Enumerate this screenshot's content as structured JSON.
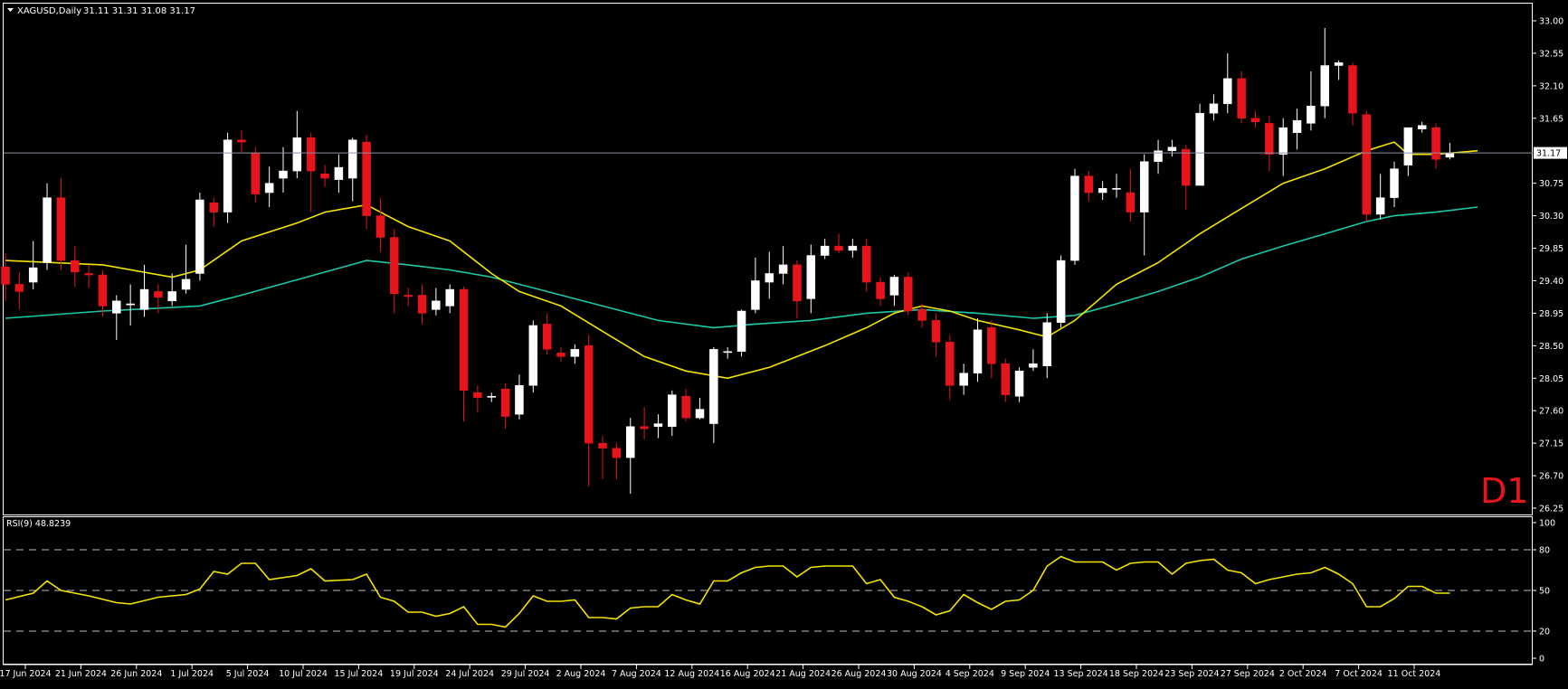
{
  "header": {
    "symbol_label": "XAGUSD,Daily",
    "ohlc": "31.11 31.31 31.08 31.17",
    "timeframe_badge": "D1"
  },
  "price_panel": {
    "current_price_label": "31.17",
    "y_ticks": [
      "33.00",
      "32.55",
      "32.10",
      "31.65",
      "30.75",
      "30.30",
      "29.85",
      "29.40",
      "28.95",
      "28.50",
      "28.05",
      "27.60",
      "27.15",
      "26.70",
      "26.25"
    ]
  },
  "rsi_panel": {
    "label": "RSI(9) 48.8239",
    "y_ticks": [
      "100",
      "80",
      "50",
      "20",
      "0"
    ]
  },
  "x_ticks": [
    "17 Jun 2024",
    "21 Jun 2024",
    "26 Jun 2024",
    "1 Jul 2024",
    "5 Jul 2024",
    "10 Jul 2024",
    "15 Jul 2024",
    "19 Jul 2024",
    "24 Jul 2024",
    "29 Jul 2024",
    "2 Aug 2024",
    "7 Aug 2024",
    "12 Aug 2024",
    "16 Aug 2024",
    "21 Aug 2024",
    "26 Aug 2024",
    "30 Aug 2024",
    "4 Sep 2024",
    "9 Sep 2024",
    "13 Sep 2024",
    "18 Sep 2024",
    "23 Sep 2024",
    "27 Sep 2024",
    "2 Oct 2024",
    "7 Oct 2024",
    "11 Oct 2024"
  ],
  "colors": {
    "bull": "#ffffff",
    "bear": "#e8141c",
    "ma_fast": "#f5e400",
    "ma_slow": "#19c8a8",
    "rsi": "#f5e400",
    "axis_text": "#ffffff",
    "grid_dash": "#bbbbbb",
    "badge": "#e8141c"
  },
  "chart_data": {
    "type": "candlestick",
    "symbol": "XAGUSD",
    "timeframe": "Daily",
    "ylim": [
      26.25,
      33.15
    ],
    "candles": [
      [
        29.59,
        29.35,
        29.78,
        29.12
      ],
      [
        29.35,
        29.25,
        29.52,
        29.0
      ],
      [
        29.38,
        29.58,
        29.95,
        29.28
      ],
      [
        29.65,
        30.55,
        30.75,
        29.55
      ],
      [
        30.55,
        29.68,
        30.82,
        29.55
      ],
      [
        29.68,
        29.52,
        29.88,
        29.32
      ],
      [
        29.5,
        29.48,
        29.62,
        29.3
      ],
      [
        29.48,
        29.05,
        29.55,
        28.9
      ],
      [
        28.95,
        29.12,
        29.2,
        28.58
      ],
      [
        29.08,
        29.08,
        29.35,
        28.78
      ],
      [
        29.0,
        29.28,
        29.62,
        28.9
      ],
      [
        29.25,
        29.17,
        29.35,
        28.95
      ],
      [
        29.12,
        29.25,
        29.5,
        29.05
      ],
      [
        29.28,
        29.42,
        29.9,
        29.22
      ],
      [
        29.5,
        30.52,
        30.62,
        29.4
      ],
      [
        30.48,
        30.35,
        30.55,
        30.15
      ],
      [
        30.35,
        31.35,
        31.45,
        30.2
      ],
      [
        31.35,
        31.32,
        31.48,
        31.18
      ],
      [
        31.17,
        30.6,
        31.25,
        30.48
      ],
      [
        30.62,
        30.75,
        30.98,
        30.42
      ],
      [
        30.82,
        30.92,
        31.25,
        30.62
      ],
      [
        30.92,
        31.38,
        31.75,
        30.82
      ],
      [
        31.38,
        30.92,
        31.45,
        30.35
      ],
      [
        30.88,
        30.82,
        31.0,
        30.7
      ],
      [
        30.8,
        30.97,
        31.15,
        30.62
      ],
      [
        30.82,
        31.35,
        31.38,
        30.5
      ],
      [
        31.32,
        30.3,
        31.42,
        30.12
      ],
      [
        30.3,
        30.0,
        30.55,
        29.8
      ],
      [
        30.0,
        29.22,
        30.12,
        28.95
      ],
      [
        29.2,
        29.18,
        29.3,
        29.05
      ],
      [
        29.2,
        28.95,
        29.35,
        28.8
      ],
      [
        29.0,
        29.12,
        29.3,
        28.92
      ],
      [
        29.05,
        29.28,
        29.35,
        28.95
      ],
      [
        29.28,
        27.88,
        29.32,
        27.45
      ],
      [
        27.85,
        27.78,
        27.95,
        27.58
      ],
      [
        27.8,
        27.8,
        27.85,
        27.72
      ],
      [
        27.9,
        27.52,
        27.98,
        27.35
      ],
      [
        27.55,
        27.95,
        28.1,
        27.48
      ],
      [
        27.95,
        28.78,
        28.85,
        27.85
      ],
      [
        28.8,
        28.45,
        28.95,
        28.38
      ],
      [
        28.4,
        28.35,
        28.48,
        28.28
      ],
      [
        28.35,
        28.45,
        28.52,
        28.25
      ],
      [
        28.5,
        27.15,
        28.65,
        26.55
      ],
      [
        27.15,
        27.08,
        27.25,
        26.65
      ],
      [
        27.08,
        26.95,
        27.15,
        26.65
      ],
      [
        26.95,
        27.38,
        27.5,
        26.45
      ],
      [
        27.38,
        27.35,
        27.65,
        27.2
      ],
      [
        27.38,
        27.42,
        27.55,
        27.22
      ],
      [
        27.38,
        27.82,
        27.88,
        27.25
      ],
      [
        27.8,
        27.5,
        27.9,
        27.45
      ],
      [
        27.5,
        27.62,
        27.78,
        27.48
      ],
      [
        27.42,
        28.45,
        28.48,
        27.15
      ],
      [
        28.42,
        28.42,
        28.48,
        28.32
      ],
      [
        28.42,
        28.98,
        29.0,
        28.35
      ],
      [
        29.0,
        29.4,
        29.72,
        28.95
      ],
      [
        29.38,
        29.5,
        29.8,
        29.15
      ],
      [
        29.5,
        29.62,
        29.88,
        29.35
      ],
      [
        29.62,
        29.12,
        29.68,
        28.88
      ],
      [
        29.15,
        29.75,
        29.9,
        28.95
      ],
      [
        29.75,
        29.88,
        29.98,
        29.7
      ],
      [
        29.88,
        29.82,
        30.05,
        29.78
      ],
      [
        29.82,
        29.88,
        29.98,
        29.72
      ],
      [
        29.88,
        29.38,
        29.98,
        29.25
      ],
      [
        29.38,
        29.15,
        29.45,
        29.05
      ],
      [
        29.2,
        29.45,
        29.48,
        29.05
      ],
      [
        29.45,
        28.98,
        29.52,
        28.92
      ],
      [
        29.0,
        28.85,
        29.08,
        28.75
      ],
      [
        28.85,
        28.55,
        28.95,
        28.35
      ],
      [
        28.55,
        27.95,
        28.65,
        27.75
      ],
      [
        27.95,
        28.12,
        28.25,
        27.82
      ],
      [
        28.12,
        28.72,
        28.88,
        28.0
      ],
      [
        28.75,
        28.25,
        28.85,
        28.05
      ],
      [
        28.25,
        27.82,
        28.32,
        27.72
      ],
      [
        27.8,
        28.15,
        28.2,
        27.72
      ],
      [
        28.2,
        28.25,
        28.45,
        28.15
      ],
      [
        28.22,
        28.82,
        28.95,
        28.05
      ],
      [
        28.82,
        29.68,
        29.75,
        28.75
      ],
      [
        29.68,
        30.85,
        30.95,
        29.62
      ],
      [
        30.85,
        30.62,
        30.92,
        30.5
      ],
      [
        30.62,
        30.68,
        30.78,
        30.52
      ],
      [
        30.68,
        30.68,
        30.88,
        30.55
      ],
      [
        30.62,
        30.35,
        30.95,
        30.22
      ],
      [
        30.35,
        31.05,
        31.15,
        29.75
      ],
      [
        31.05,
        31.2,
        31.35,
        30.88
      ],
      [
        31.2,
        31.25,
        31.35,
        31.12
      ],
      [
        31.22,
        30.72,
        31.28,
        30.38
      ],
      [
        30.72,
        31.72,
        31.85,
        30.72
      ],
      [
        31.72,
        31.85,
        31.98,
        31.62
      ],
      [
        31.85,
        32.2,
        32.55,
        31.72
      ],
      [
        32.2,
        31.65,
        32.3,
        31.58
      ],
      [
        31.65,
        31.6,
        31.75,
        31.52
      ],
      [
        31.58,
        31.15,
        31.68,
        30.92
      ],
      [
        31.15,
        31.52,
        31.65,
        30.85
      ],
      [
        31.45,
        31.62,
        31.78,
        31.22
      ],
      [
        31.58,
        31.82,
        32.3,
        31.48
      ],
      [
        31.82,
        32.38,
        32.9,
        31.65
      ],
      [
        32.38,
        32.42,
        32.45,
        32.18
      ],
      [
        32.38,
        31.72,
        32.42,
        31.55
      ],
      [
        31.7,
        30.32,
        31.75,
        30.22
      ],
      [
        30.32,
        30.55,
        30.88,
        30.25
      ],
      [
        30.55,
        30.95,
        31.05,
        30.42
      ],
      [
        31.0,
        31.52,
        31.52,
        30.85
      ],
      [
        31.5,
        31.55,
        31.6,
        31.45
      ],
      [
        31.52,
        31.08,
        31.58,
        30.95
      ],
      [
        31.11,
        31.17,
        31.31,
        31.08
      ]
    ],
    "ma_fast": [
      [
        0,
        29.68
      ],
      [
        7,
        29.62
      ],
      [
        12,
        29.45
      ],
      [
        14,
        29.55
      ],
      [
        17,
        29.95
      ],
      [
        21,
        30.2
      ],
      [
        23,
        30.35
      ],
      [
        26,
        30.45
      ],
      [
        29,
        30.15
      ],
      [
        32,
        29.95
      ],
      [
        35,
        29.5
      ],
      [
        37,
        29.25
      ],
      [
        40,
        29.05
      ],
      [
        43,
        28.7
      ],
      [
        46,
        28.35
      ],
      [
        49,
        28.15
      ],
      [
        52,
        28.05
      ],
      [
        55,
        28.2
      ],
      [
        59,
        28.5
      ],
      [
        62,
        28.75
      ],
      [
        64,
        28.95
      ],
      [
        66,
        29.05
      ],
      [
        68,
        28.98
      ],
      [
        70,
        28.85
      ],
      [
        73,
        28.72
      ],
      [
        75,
        28.62
      ],
      [
        77,
        28.85
      ],
      [
        80,
        29.35
      ],
      [
        83,
        29.65
      ],
      [
        86,
        30.05
      ],
      [
        89,
        30.4
      ],
      [
        92,
        30.75
      ],
      [
        95,
        30.95
      ],
      [
        98,
        31.2
      ],
      [
        100,
        31.32
      ],
      [
        101,
        31.15
      ],
      [
        103,
        31.15
      ],
      [
        106,
        31.2
      ]
    ],
    "ma_slow": [
      [
        0,
        28.88
      ],
      [
        7,
        28.98
      ],
      [
        14,
        29.05
      ],
      [
        17,
        29.2
      ],
      [
        23,
        29.52
      ],
      [
        26,
        29.68
      ],
      [
        29,
        29.62
      ],
      [
        32,
        29.55
      ],
      [
        35,
        29.45
      ],
      [
        39,
        29.25
      ],
      [
        43,
        29.05
      ],
      [
        47,
        28.85
      ],
      [
        51,
        28.75
      ],
      [
        54,
        28.8
      ],
      [
        58,
        28.85
      ],
      [
        62,
        28.95
      ],
      [
        66,
        29.0
      ],
      [
        70,
        28.95
      ],
      [
        74,
        28.88
      ],
      [
        77,
        28.92
      ],
      [
        80,
        29.08
      ],
      [
        83,
        29.25
      ],
      [
        86,
        29.45
      ],
      [
        89,
        29.7
      ],
      [
        92,
        29.88
      ],
      [
        95,
        30.05
      ],
      [
        98,
        30.22
      ],
      [
        100,
        30.3
      ],
      [
        103,
        30.35
      ],
      [
        106,
        30.42
      ]
    ],
    "rsi": [
      [
        0,
        43
      ],
      [
        2,
        48
      ],
      [
        3,
        57
      ],
      [
        4,
        50
      ],
      [
        6,
        46
      ],
      [
        8,
        41
      ],
      [
        9,
        40
      ],
      [
        11,
        45
      ],
      [
        13,
        47
      ],
      [
        14,
        51
      ],
      [
        15,
        64
      ],
      [
        16,
        62
      ],
      [
        17,
        70
      ],
      [
        18,
        70
      ],
      [
        19,
        58
      ],
      [
        21,
        61
      ],
      [
        22,
        66
      ],
      [
        23,
        57
      ],
      [
        25,
        58
      ],
      [
        26,
        62
      ],
      [
        27,
        45
      ],
      [
        28,
        42
      ],
      [
        29,
        34
      ],
      [
        30,
        34
      ],
      [
        31,
        31
      ],
      [
        32,
        33
      ],
      [
        33,
        38
      ],
      [
        34,
        25
      ],
      [
        35,
        25
      ],
      [
        36,
        23
      ],
      [
        37,
        33
      ],
      [
        38,
        46
      ],
      [
        39,
        42
      ],
      [
        40,
        42
      ],
      [
        41,
        43
      ],
      [
        42,
        30
      ],
      [
        43,
        30
      ],
      [
        44,
        29
      ],
      [
        45,
        37
      ],
      [
        46,
        38
      ],
      [
        47,
        38
      ],
      [
        48,
        47
      ],
      [
        49,
        43
      ],
      [
        50,
        40
      ],
      [
        51,
        57
      ],
      [
        52,
        57
      ],
      [
        53,
        63
      ],
      [
        54,
        67
      ],
      [
        55,
        68
      ],
      [
        56,
        68
      ],
      [
        57,
        60
      ],
      [
        58,
        67
      ],
      [
        59,
        68
      ],
      [
        60,
        68
      ],
      [
        61,
        68
      ],
      [
        62,
        55
      ],
      [
        63,
        58
      ],
      [
        64,
        45
      ],
      [
        65,
        42
      ],
      [
        66,
        38
      ],
      [
        67,
        32
      ],
      [
        68,
        35
      ],
      [
        69,
        47
      ],
      [
        70,
        41
      ],
      [
        71,
        36
      ],
      [
        72,
        42
      ],
      [
        73,
        43
      ],
      [
        74,
        50
      ],
      [
        75,
        68
      ],
      [
        76,
        75
      ],
      [
        77,
        71
      ],
      [
        78,
        71
      ],
      [
        79,
        71
      ],
      [
        80,
        65
      ],
      [
        81,
        70
      ],
      [
        82,
        71
      ],
      [
        83,
        71
      ],
      [
        84,
        62
      ],
      [
        85,
        70
      ],
      [
        86,
        72
      ],
      [
        87,
        73
      ],
      [
        88,
        65
      ],
      [
        89,
        63
      ],
      [
        90,
        55
      ],
      [
        91,
        58
      ],
      [
        92,
        60
      ],
      [
        93,
        62
      ],
      [
        94,
        63
      ],
      [
        95,
        67
      ],
      [
        96,
        62
      ],
      [
        97,
        55
      ],
      [
        98,
        38
      ],
      [
        99,
        38
      ],
      [
        100,
        44
      ],
      [
        101,
        53
      ],
      [
        102,
        53
      ],
      [
        103,
        48
      ],
      [
        104,
        48
      ]
    ]
  }
}
